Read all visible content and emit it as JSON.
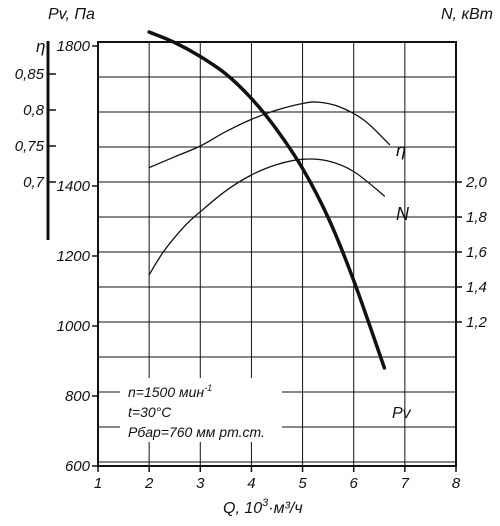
{
  "chart_data": {
    "type": "line",
    "header_left": "Pv, Па",
    "header_right": "N, кВт",
    "xlabel": {
      "prefix": "Q, 10",
      "exp": "3",
      "suffix": "·м³/ч"
    },
    "x_ticks": [
      "1",
      "2",
      "3",
      "4",
      "5",
      "6",
      "7",
      "8"
    ],
    "x_range": [
      1,
      8
    ],
    "grid": true,
    "pv_axis": {
      "ticks": [
        "600",
        "800",
        "1000",
        "1200",
        "1400",
        "1800"
      ],
      "tick_values": [
        600,
        800,
        1000,
        1200,
        1400,
        1800
      ]
    },
    "eta_axis": {
      "label": "η",
      "ticks": [
        "0,7",
        "0,75",
        "0,8",
        "0,85"
      ],
      "tick_values": [
        0.7,
        0.75,
        0.8,
        0.85
      ]
    },
    "n_axis": {
      "ticks": [
        "1,2",
        "1,4",
        "1,6",
        "1,8",
        "2,0"
      ],
      "tick_values": [
        1.2,
        1.4,
        1.6,
        1.8,
        2.0
      ]
    },
    "conditions": [
      {
        "text": "n=1500 мин",
        "sup": "-1"
      },
      {
        "text": "t=30°C",
        "sup": ""
      },
      {
        "text": "Pбар=760 мм рт.ст.",
        "sup": ""
      }
    ],
    "series": [
      {
        "name": "η",
        "axis": "eta",
        "x": [
          2.0,
          2.5,
          3.0,
          3.5,
          4.0,
          4.5,
          5.0,
          5.3,
          5.7,
          6.2,
          6.7
        ],
        "y": [
          0.72,
          0.735,
          0.75,
          0.77,
          0.787,
          0.8,
          0.809,
          0.811,
          0.805,
          0.786,
          0.752
        ]
      },
      {
        "name": "N",
        "axis": "n",
        "x": [
          2.0,
          2.3,
          2.7,
          3.0,
          3.5,
          4.0,
          4.5,
          5.0,
          5.5,
          6.0,
          6.6
        ],
        "y": [
          1.47,
          1.61,
          1.75,
          1.83,
          1.95,
          2.04,
          2.1,
          2.13,
          2.12,
          2.06,
          1.92
        ]
      },
      {
        "name": "Pv",
        "axis": "pv",
        "x": [
          2.0,
          2.5,
          3.0,
          3.5,
          4.0,
          4.5,
          5.0,
          5.5,
          6.0,
          6.6
        ],
        "y": [
          1840,
          1810,
          1770,
          1720,
          1650,
          1560,
          1450,
          1310,
          1130,
          880
        ]
      }
    ]
  }
}
